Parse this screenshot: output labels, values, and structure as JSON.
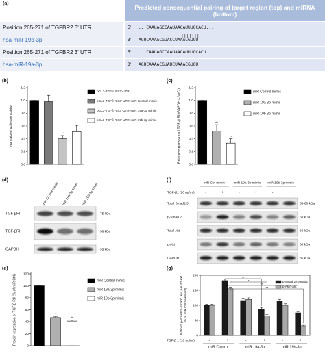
{
  "panel_a": {
    "label": "(a)",
    "header": "Predicted consequential pairing of target region (top) and miRNA (bottom)",
    "rows": [
      {
        "name": "Position 265-271 of TGFBR2 3' UTR",
        "end": "5'",
        "sequence": "...CAAUAGCCAAUAACAUUUGCACU..."
      },
      {
        "name": "hsa-miR-19b-3p",
        "end": "3'",
        "sequence": "AGUCAAAACGUACCUAAACGUGU"
      },
      {
        "name": "Position 265-271 of TGFBR2 3' UTR",
        "end": "5'",
        "sequence": "...CAAUAGCCAAUAACAUUUGCACU..."
      },
      {
        "name": "hsa-miR-19a-3p",
        "end": "3'",
        "sequence": "AGUCAAAACGUAUCUAAACGUGU"
      }
    ]
  },
  "chart_data": [
    {
      "type": "bar",
      "label": "(b)",
      "ylabel": "Normalized luciferase activity",
      "categories": [
        "pGL3-TGFβ RII-3'-UTR",
        "pGL3-TGFβ RII-3'-UTR+miR Control mimic",
        "pGL3-TGFβ RII-3'-UTR+miR 19a-3p mimic",
        "pGL3-TGFβ RII-3'-UTR+miR 19b-3p mimic"
      ],
      "values": [
        1.0,
        0.98,
        0.4,
        0.51
      ],
      "errors": [
        0,
        0.1,
        0.05,
        0.1
      ],
      "colors": [
        "#000000",
        "#7a7a7a",
        "#c4c4c4",
        "#ffffff"
      ],
      "significance": [
        null,
        null,
        "**",
        "**"
      ],
      "ylim": [
        0,
        1.2
      ],
      "yticks": [
        {
          "value": 0,
          "label": "0.0"
        },
        0.2,
        0.4,
        0.6,
        0.8,
        {
          "value": 1,
          "label": "1.0"
        },
        1.2
      ],
      "legend": "right"
    },
    {
      "type": "bar",
      "label": "(c)",
      "ylabel": "Relative expression of TGF-β RII/GAPDH (-ΔΔCt)",
      "categories": [
        "miR Control mimic",
        "miR 19a-3p mimic",
        "miR 19b-3p mimic"
      ],
      "values": [
        1.0,
        0.52,
        0.33
      ],
      "errors": [
        0,
        0.1,
        0.07
      ],
      "colors": [
        "#000000",
        "#b0b0b0",
        "#ffffff"
      ],
      "significance": [
        null,
        "**",
        "**"
      ],
      "ylim": [
        0,
        1.2
      ],
      "yticks": [
        {
          "value": 0,
          "label": "0.0"
        },
        0.2,
        0.4,
        0.6,
        0.8,
        {
          "value": 1,
          "label": "1.0"
        },
        1.2
      ],
      "legend": "right"
    },
    {
      "type": "bar",
      "label": "(e)",
      "ylabel": "Protein expression of TGF-β RII (% of miR Ctrl)",
      "categories": [
        "miR Control mimic",
        "miR 19a-3p mimic",
        "miR 19b-3p mimic"
      ],
      "values": [
        100,
        47,
        41
      ],
      "errors": [
        0,
        2,
        2
      ],
      "colors": [
        "#000000",
        "#b0b0b0",
        "#ffffff"
      ],
      "significance": [
        null,
        "**",
        "**"
      ],
      "ylim": [
        0,
        120
      ],
      "yticks": [
        0,
        20,
        40,
        60,
        80,
        100,
        120
      ],
      "legend": "right"
    },
    {
      "type": "grouped_bar",
      "label": "(g)",
      "ylabel": [
        "Ratio of p-Smad2/t-Smad2 and p-Akt/t-Akt",
        "(% of miR Ctrl treatment)"
      ],
      "xlabel": "TGF-β 1 (10 ng/ml)",
      "categories": [
        "-",
        "+",
        "-",
        "+",
        "-",
        "+"
      ],
      "groups": [
        "miR Control",
        "miR 19a-3p",
        "miR 19b-3p"
      ],
      "series": [
        {
          "name": "p-Smad 2/t-Smad2",
          "color": "#1a1a1a",
          "values": [
            100,
            182,
            116,
            88,
            115,
            75
          ],
          "errors": [
            3,
            5,
            5,
            5,
            5,
            5
          ]
        },
        {
          "name": "p-Akt/t-Akt",
          "color": "#a8a8a8",
          "values": [
            100,
            155,
            120,
            65,
            100,
            32
          ],
          "errors": [
            3,
            5,
            5,
            5,
            5,
            4
          ]
        }
      ],
      "brackets": [
        {
          "text": "**"
        },
        {
          "text": "*"
        },
        {
          "text": "**"
        },
        {
          "text": "**"
        }
      ],
      "ylim": [
        0,
        200
      ],
      "yticks": [
        0,
        50,
        100,
        150,
        200
      ],
      "legend": "upper right"
    }
  ],
  "blots": [
    {
      "label": "(d)",
      "lanes": [
        "miR Control mimic",
        "miR 19a-3p mimic",
        "miR 19b-3p mimic"
      ],
      "rows": [
        {
          "name": "TGF-βRI",
          "size": "75 kDa"
        },
        {
          "name": "TGF-βRII",
          "size": "56 kDa"
        },
        {
          "name": "GAPDH",
          "size": "35 kDa"
        }
      ]
    },
    {
      "label": "(f)",
      "groups": [
        "miR Ctrl mimic",
        "miR 19a-3p mimic",
        "miR 19b-3p mimic"
      ],
      "treatment": "TGF-β1 (10 ng/ml)",
      "lanes": [
        "-",
        "+",
        "-",
        "+",
        "-",
        "+"
      ],
      "rows": [
        {
          "name": "Total Smad2/3",
          "size": "55-60 kDa"
        },
        {
          "name": "p-Smad 2",
          "size": "60 kDa"
        },
        {
          "name": "Total Akt",
          "size": "60 kDa"
        },
        {
          "name": "p-Akt",
          "size": "60 kDa"
        },
        {
          "name": "GAPDH",
          "size": "35 kDa"
        }
      ]
    }
  ]
}
